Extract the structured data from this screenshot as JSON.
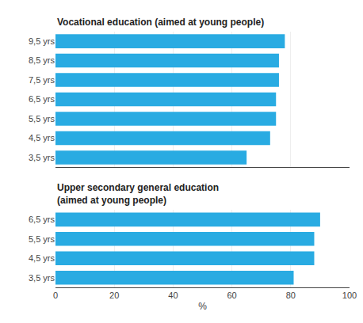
{
  "chart_data": [
    {
      "type": "bar",
      "orientation": "horizontal",
      "title": "Vocational education (aimed at young people)",
      "categories": [
        "9,5 yrs",
        "8,5 yrs",
        "7,5 yrs",
        "6,5 yrs",
        "5,5 yrs",
        "4,5 yrs",
        "3,5 yrs"
      ],
      "values": [
        78,
        76,
        76,
        75,
        75,
        73,
        65
      ],
      "color": "#29ABE2",
      "xlim": [
        0,
        100
      ],
      "xticks": [
        0,
        20,
        40,
        60,
        80,
        100
      ],
      "grid": true,
      "tick_labels": "y"
    },
    {
      "type": "bar",
      "orientation": "horizontal",
      "title": "Upper secondary general education\n(aimed at young people)",
      "categories": [
        "6,5 yrs",
        "5,5 yrs",
        "4,5 yrs",
        "3,5 yrs"
      ],
      "values": [
        90,
        88,
        88,
        81
      ],
      "color": "#29ABE2",
      "xlabel": "%",
      "xlim": [
        0,
        100
      ],
      "xticks": [
        0,
        20,
        40,
        60,
        80,
        100
      ],
      "grid": true
    }
  ]
}
